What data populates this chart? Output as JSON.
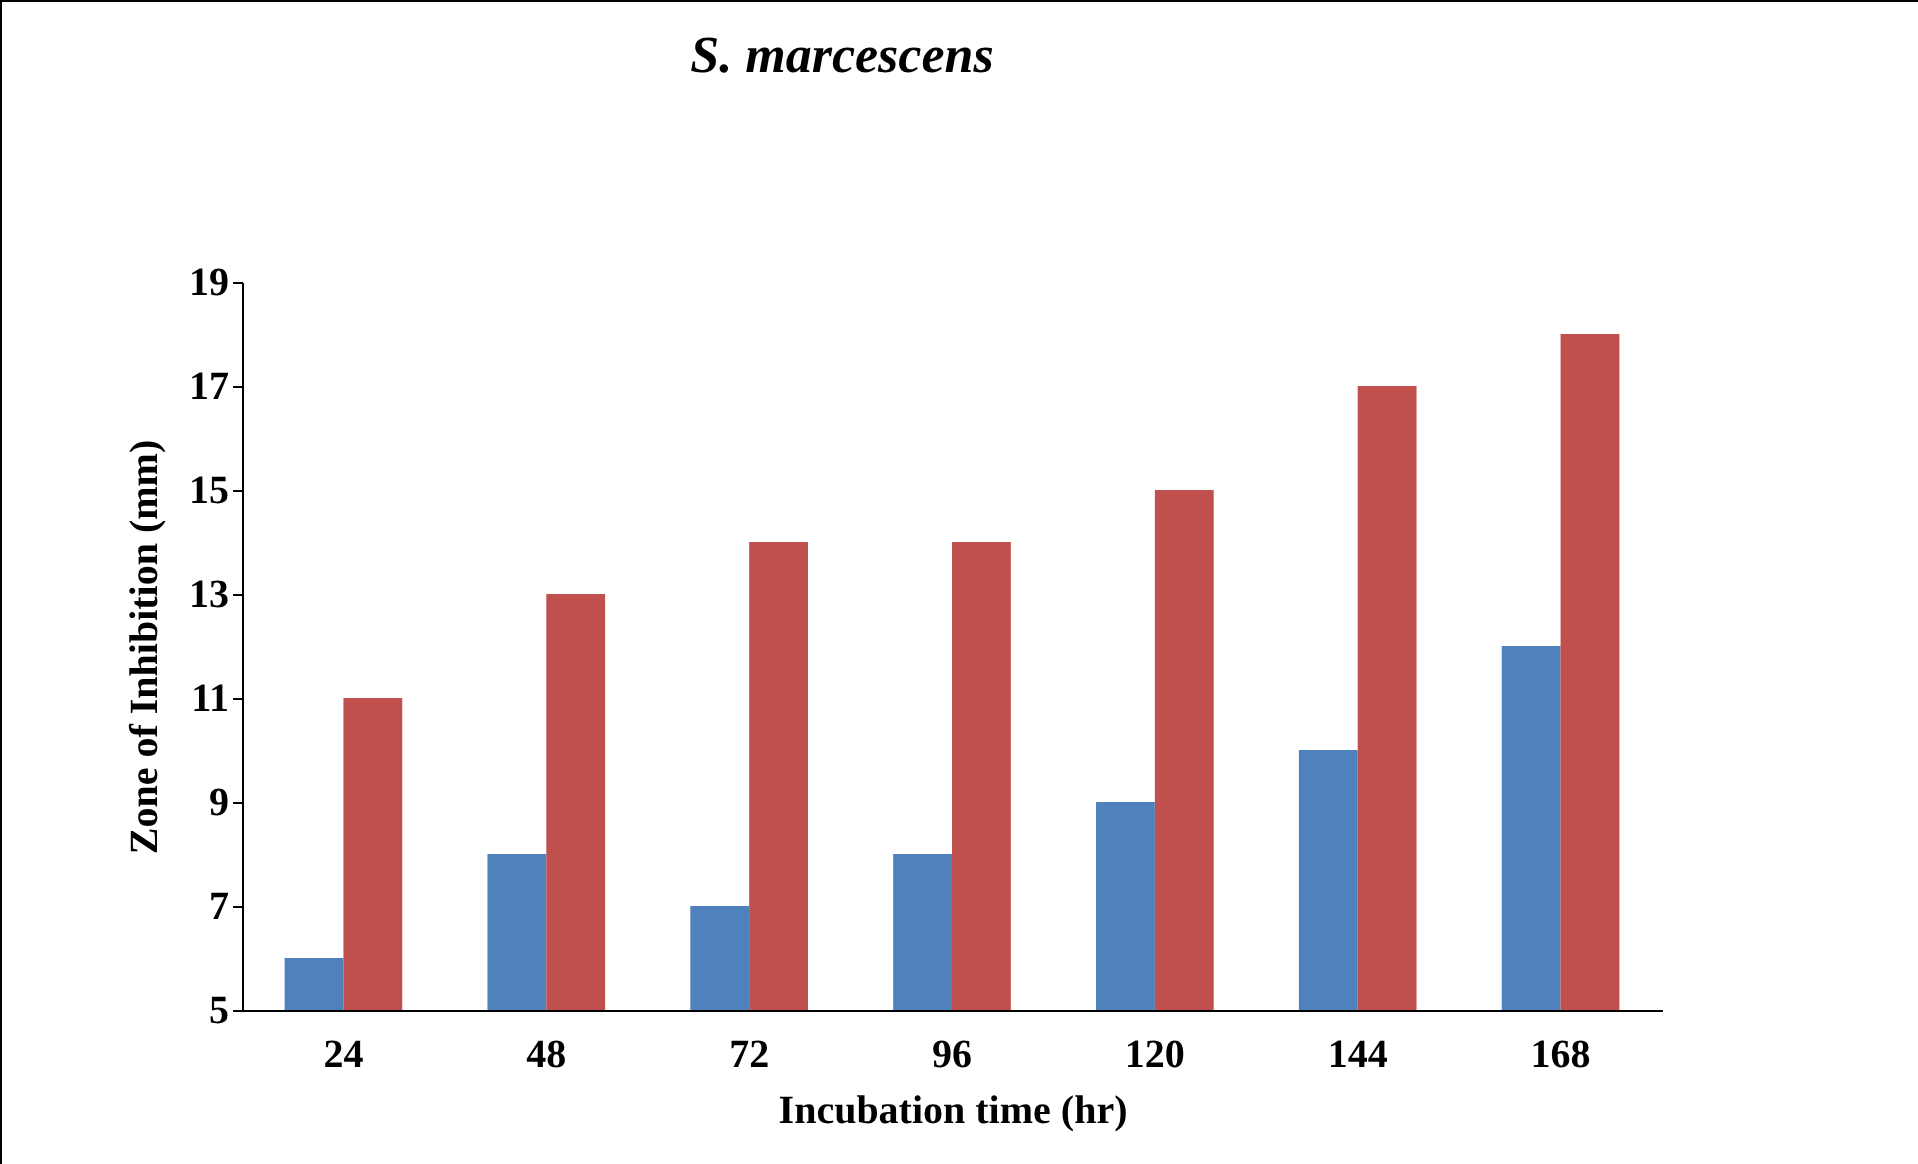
{
  "chart_data": {
    "type": "bar",
    "title": "S. marcescens",
    "xlabel": "Incubation time (hr)",
    "ylabel": "Zone of Inhibition (mm)",
    "categories": [
      "24",
      "48",
      "72",
      "96",
      "120",
      "144",
      "168"
    ],
    "series": [
      {
        "color": "#4f81bd",
        "values": [
          6,
          8,
          7,
          8,
          9,
          10,
          12
        ]
      },
      {
        "color": "#c0504d",
        "values": [
          11,
          13,
          14,
          14,
          15,
          17,
          18
        ]
      }
    ],
    "ylim": [
      5,
      19
    ],
    "yticks": [
      5,
      7,
      9,
      11,
      13,
      15,
      17,
      19
    ],
    "grid": false,
    "legend": false
  }
}
